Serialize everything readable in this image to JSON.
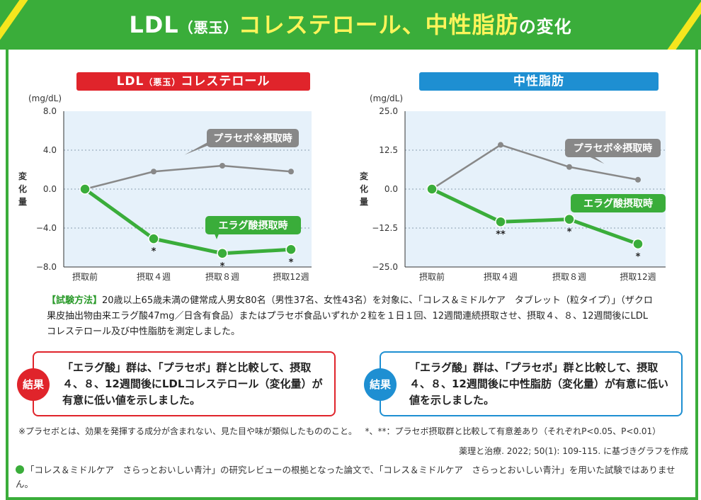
{
  "title": {
    "ldl": "LDL",
    "ldl_paren": "（悪玉）",
    "chol": "コレステロール、",
    "tg": "中性脂肪",
    "suffix": "の変化"
  },
  "colors": {
    "banner_green": "#3aad3a",
    "accent_yellow": "#fff45a",
    "red": "#e0242b",
    "blue": "#1e8fd2",
    "placebo_gray": "#888888",
    "ellagic_green": "#3aad3a",
    "plot_bg": "#e6f1fa"
  },
  "chart_ldl_header": {
    "main": "LDL",
    "paren": "（悪玉）",
    "rest": "コレステロール"
  },
  "chart_tg_header": {
    "main": "中性脂肪"
  },
  "chart_data": [
    {
      "type": "line",
      "title": "LDL（悪玉）コレステロール",
      "unit": "(mg/dL)",
      "ylabel": "変化量",
      "categories": [
        "摂取前",
        "摂取４週",
        "摂取８週",
        "摂取12週"
      ],
      "yticks": [
        "8.0",
        "4.0",
        "0.0",
        "−4.0",
        "−8.0"
      ],
      "ylim": [
        -8,
        8
      ],
      "grid": true,
      "series": [
        {
          "name": "プラセボ※摂取時",
          "values": [
            0,
            1.8,
            2.4,
            1.8
          ]
        },
        {
          "name": "エラグ酸摂取時",
          "values": [
            0,
            -5.1,
            -6.6,
            -6.2
          ],
          "marks": [
            "",
            "*",
            "*",
            "*"
          ]
        }
      ]
    },
    {
      "type": "line",
      "title": "中性脂肪",
      "unit": "(mg/dL)",
      "ylabel": "変化量",
      "categories": [
        "摂取前",
        "摂取４週",
        "摂取８週",
        "摂取12週"
      ],
      "yticks": [
        "25.0",
        "12.5",
        "0.0",
        "−12.5",
        "−25.0"
      ],
      "ylim": [
        -25,
        25
      ],
      "grid": true,
      "series": [
        {
          "name": "プラセボ※摂取時",
          "values": [
            0,
            14.2,
            7.1,
            3.0
          ]
        },
        {
          "name": "エラグ酸摂取時",
          "values": [
            0,
            -10.5,
            -9.7,
            -17.6
          ],
          "marks": [
            "",
            "**",
            "*",
            "*"
          ]
        }
      ]
    }
  ],
  "method": {
    "tag": "【試験方法】",
    "text": "20歳以上65歳未満の健常成人男女80名（男性37名、女性43名）を対象に、「コレス＆ミドルケア　タブレット（粒タイプ）」（ザクロ果皮抽出物由来エラグ酸47mg／日含有食品）またはプラセボ食品いずれか２粒を１日１回、12週間連続摂取させ、摂取４、８、12週間後にLDLコレステロール及び中性脂肪を測定しました。"
  },
  "results": {
    "label": "結果",
    "ldl_text": "「エラグ酸」群は、「プラセボ」群と比較して、摂取 ４、８、12週間後にLDLコレステロール（変化量）が有意に低い値を示しました。",
    "tg_text": "「エラグ酸」群は、「プラセボ」群と比較して、摂取 ４、８、12週間後に中性脂肪（変化量）が有意に低い値を示しました。"
  },
  "footnotes": {
    "placebo_note": "※プラセボとは、効果を発揮する成分が含まれない、見た目や味が類似したもののこと。",
    "sig_note": "*、**：プラセボ摂取群と比較して有意差あり（それぞれP<0.05、P<0.01）",
    "source": "薬理と治療. 2022; 50(1): 109-115. に基づきグラフを作成",
    "disclaimer": "「コレス＆ミドルケア　さらっとおいしい青汁」の研究レビューの根拠となった論文で、「コレス＆ミドルケア　さらっとおいしい青汁」を用いた試験ではありません。"
  }
}
